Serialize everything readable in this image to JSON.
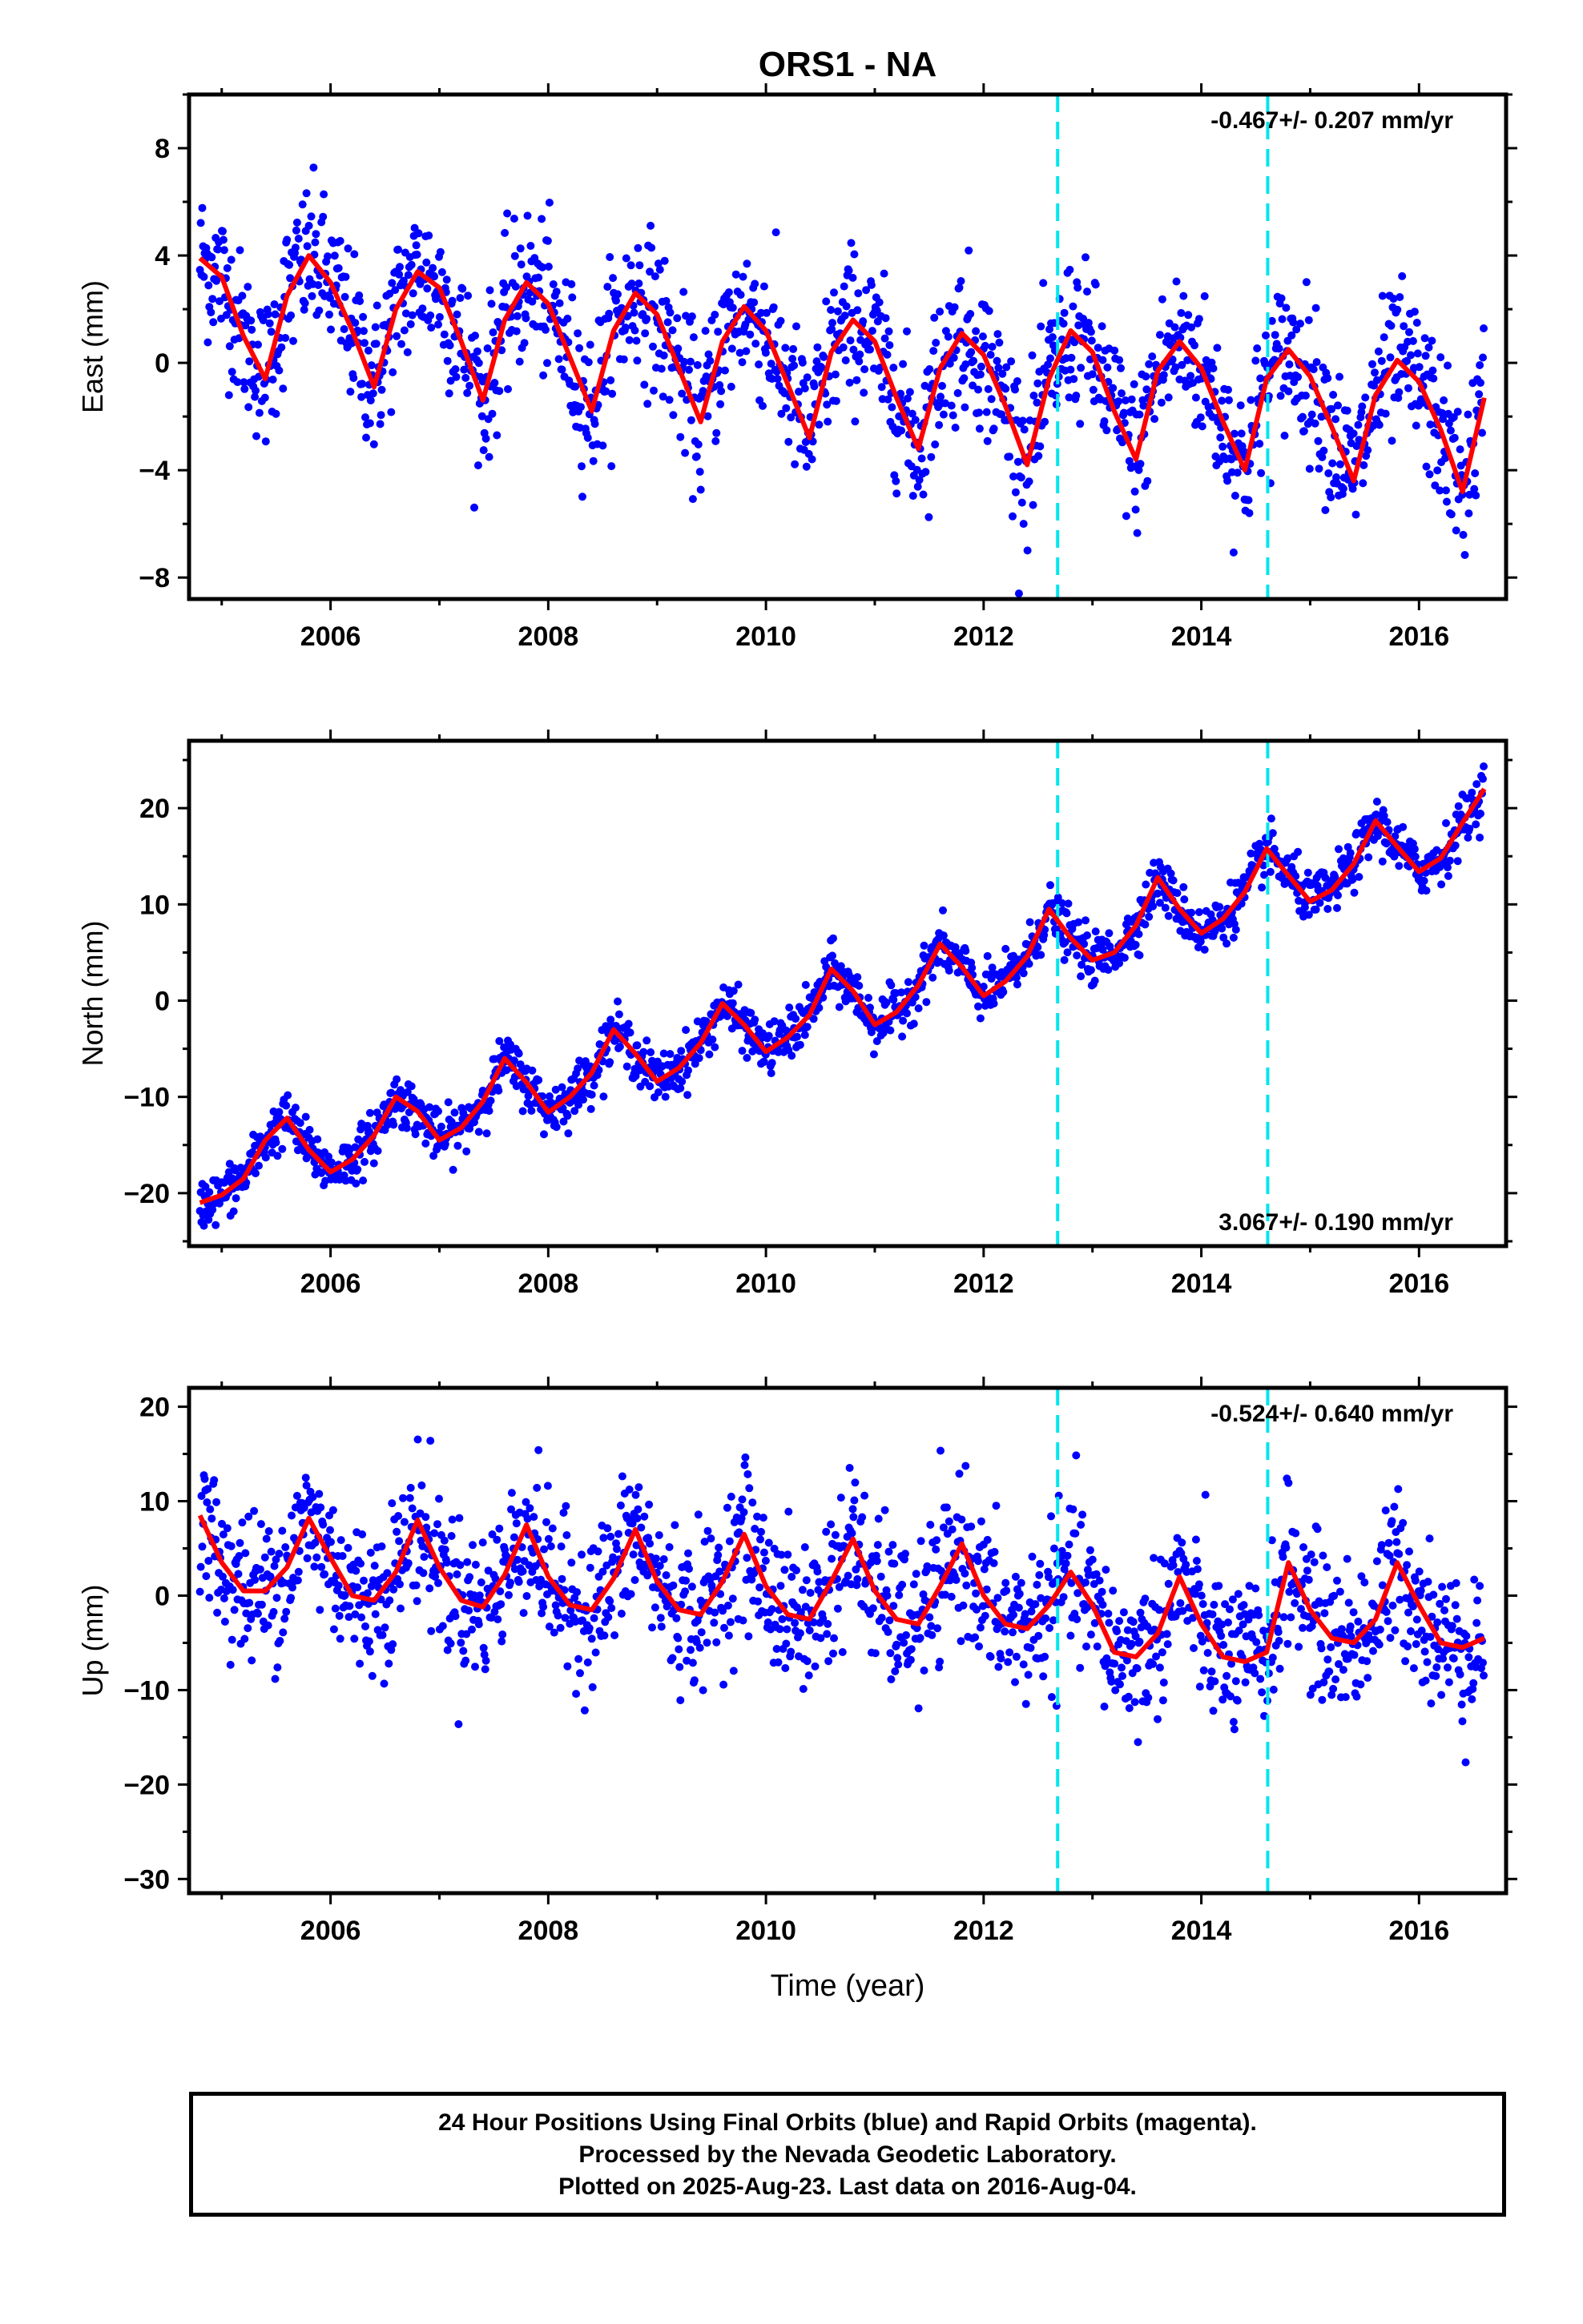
{
  "title": "ORS1 - NA",
  "xlabel": "Time (year)",
  "caption": {
    "line1": "24 Hour Positions Using Final Orbits (blue) and Rapid Orbits (magenta).",
    "line2": "Processed by the Nevada Geodetic Laboratory.",
    "line3": "Plotted on 2025-Aug-23. Last data on 2016-Aug-04."
  },
  "colors": {
    "points": "#0000ff",
    "fit": "#ff0000",
    "events": "#00e5ee",
    "frame": "#000000"
  },
  "chart_data": [
    {
      "type": "scatter",
      "ylabel": "East (mm)",
      "rate_text": "-0.467+/- 0.207 mm/yr",
      "xlim": [
        2004.7,
        2016.8
      ],
      "ylim": [
        -8.8,
        10.0
      ],
      "xticks": [
        2006,
        2008,
        2010,
        2012,
        2014,
        2016
      ],
      "yticks": [
        -8,
        -4,
        0,
        4,
        8
      ],
      "event_lines": [
        2012.68,
        2014.61
      ],
      "series": [
        {
          "x": [
            2004.8,
            2005.0,
            2005.2,
            2005.4,
            2005.6,
            2005.8,
            2006.0,
            2006.2,
            2006.4,
            2006.6,
            2006.8,
            2007.0,
            2007.2,
            2007.4,
            2007.6,
            2007.8,
            2008.0,
            2008.2,
            2008.4,
            2008.6,
            2008.8,
            2009.0,
            2009.2,
            2009.4,
            2009.6,
            2009.8,
            2010.0,
            2010.2,
            2010.4,
            2010.6,
            2010.8,
            2011.0,
            2011.2,
            2011.4,
            2011.6,
            2011.8,
            2012.0,
            2012.2,
            2012.4,
            2012.6,
            2012.8,
            2013.0,
            2013.2,
            2013.4,
            2013.6,
            2013.8,
            2014.0,
            2014.2,
            2014.4,
            2014.6,
            2014.8,
            2015.0,
            2015.2,
            2015.4,
            2015.6,
            2015.8,
            2016.0,
            2016.2,
            2016.4,
            2016.6
          ],
          "y": [
            3.9,
            3.2,
            1.0,
            -0.6,
            2.5,
            4.0,
            3.0,
            1.2,
            -0.9,
            2.0,
            3.4,
            2.8,
            0.8,
            -1.4,
            1.6,
            3.0,
            2.2,
            0.2,
            -1.8,
            1.2,
            2.6,
            1.8,
            -0.2,
            -2.2,
            0.8,
            2.1,
            1.2,
            -0.8,
            -2.8,
            0.4,
            1.6,
            0.8,
            -1.3,
            -3.2,
            -0.2,
            1.1,
            0.3,
            -1.6,
            -3.8,
            -0.6,
            1.2,
            0.4,
            -1.8,
            -3.6,
            -0.3,
            0.8,
            -0.2,
            -2.2,
            -4.0,
            -0.6,
            0.5,
            -0.5,
            -2.4,
            -4.4,
            -1.2,
            0.1,
            -0.7,
            -2.5,
            -4.8,
            -1.3
          ],
          "scatter_sd": 1.4
        }
      ]
    },
    {
      "type": "scatter",
      "ylabel": "North (mm)",
      "rate_text": "3.067+/- 0.190 mm/yr",
      "xlim": [
        2004.7,
        2016.8
      ],
      "ylim": [
        -25.5,
        27.0
      ],
      "xticks": [
        2006,
        2008,
        2010,
        2012,
        2014,
        2016
      ],
      "yticks": [
        -20,
        -10,
        0,
        10,
        20
      ],
      "event_lines": [
        2012.68,
        2014.61
      ],
      "series": [
        {
          "x": [
            2004.8,
            2005.0,
            2005.2,
            2005.4,
            2005.6,
            2005.8,
            2006.0,
            2006.2,
            2006.4,
            2006.6,
            2006.8,
            2007.0,
            2007.2,
            2007.4,
            2007.6,
            2007.8,
            2008.0,
            2008.2,
            2008.4,
            2008.6,
            2008.8,
            2009.0,
            2009.2,
            2009.4,
            2009.6,
            2009.8,
            2010.0,
            2010.2,
            2010.4,
            2010.6,
            2010.8,
            2011.0,
            2011.2,
            2011.4,
            2011.6,
            2011.8,
            2012.0,
            2012.2,
            2012.4,
            2012.6,
            2012.8,
            2013.0,
            2013.2,
            2013.4,
            2013.6,
            2013.8,
            2014.0,
            2014.2,
            2014.4,
            2014.6,
            2014.8,
            2015.0,
            2015.2,
            2015.4,
            2015.6,
            2015.8,
            2016.0,
            2016.2,
            2016.4,
            2016.6
          ],
          "y": [
            -21.0,
            -20.2,
            -18.5,
            -14.5,
            -12.2,
            -15.5,
            -17.8,
            -16.5,
            -14.0,
            -10.0,
            -11.5,
            -14.5,
            -13.2,
            -10.5,
            -6.0,
            -8.5,
            -11.6,
            -10.0,
            -7.5,
            -3.0,
            -5.5,
            -8.4,
            -7.0,
            -4.4,
            -0.3,
            -2.5,
            -5.3,
            -3.8,
            -1.5,
            3.3,
            1.0,
            -2.5,
            -1.2,
            1.6,
            5.9,
            3.5,
            0.5,
            2.0,
            4.6,
            9.5,
            6.5,
            4.2,
            5.0,
            7.8,
            12.8,
            9.5,
            7.0,
            8.5,
            11.3,
            15.8,
            13.0,
            10.3,
            11.5,
            14.2,
            18.7,
            16.0,
            13.4,
            14.8,
            18.5,
            22.0
          ],
          "scatter_sd": 1.3
        }
      ]
    },
    {
      "type": "scatter",
      "ylabel": "Up (mm)",
      "rate_text": "-0.524+/- 0.640 mm/yr",
      "xlim": [
        2004.7,
        2016.8
      ],
      "ylim": [
        -31.5,
        22.0
      ],
      "xticks": [
        2006,
        2008,
        2010,
        2012,
        2014,
        2016
      ],
      "yticks": [
        -30,
        -20,
        -10,
        0,
        10,
        20
      ],
      "event_lines": [
        2012.68,
        2014.61
      ],
      "series": [
        {
          "x": [
            2004.8,
            2005.0,
            2005.2,
            2005.4,
            2005.6,
            2005.8,
            2006.0,
            2006.2,
            2006.4,
            2006.6,
            2006.8,
            2007.0,
            2007.2,
            2007.4,
            2007.6,
            2007.8,
            2008.0,
            2008.2,
            2008.4,
            2008.6,
            2008.8,
            2009.0,
            2009.2,
            2009.4,
            2009.6,
            2009.8,
            2010.0,
            2010.2,
            2010.4,
            2010.6,
            2010.8,
            2011.0,
            2011.2,
            2011.4,
            2011.6,
            2011.8,
            2012.0,
            2012.2,
            2012.4,
            2012.6,
            2012.8,
            2013.0,
            2013.2,
            2013.4,
            2013.6,
            2013.8,
            2014.0,
            2014.2,
            2014.4,
            2014.6,
            2014.8,
            2015.0,
            2015.2,
            2015.4,
            2015.6,
            2015.8,
            2016.0,
            2016.2,
            2016.4,
            2016.6
          ],
          "y": [
            8.5,
            3.5,
            0.5,
            0.5,
            3.0,
            8.2,
            4.0,
            0.0,
            -0.5,
            2.5,
            8.0,
            3.0,
            -0.5,
            -1.2,
            2.2,
            7.5,
            2.0,
            -1.0,
            -1.5,
            1.8,
            7.0,
            1.5,
            -1.5,
            -2.0,
            1.5,
            6.5,
            1.0,
            -2.0,
            -2.5,
            1.5,
            6.0,
            0.5,
            -2.5,
            -3.0,
            1.0,
            5.5,
            0.0,
            -3.0,
            -3.5,
            -1.0,
            2.5,
            -1.0,
            -6.0,
            -6.5,
            -4.0,
            2.0,
            -3.0,
            -6.5,
            -7.0,
            -6.0,
            3.5,
            -1.5,
            -4.5,
            -5.0,
            -2.5,
            3.5,
            -1.0,
            -5.0,
            -5.5,
            -4.5
          ],
          "scatter_sd": 4.0
        }
      ]
    }
  ]
}
